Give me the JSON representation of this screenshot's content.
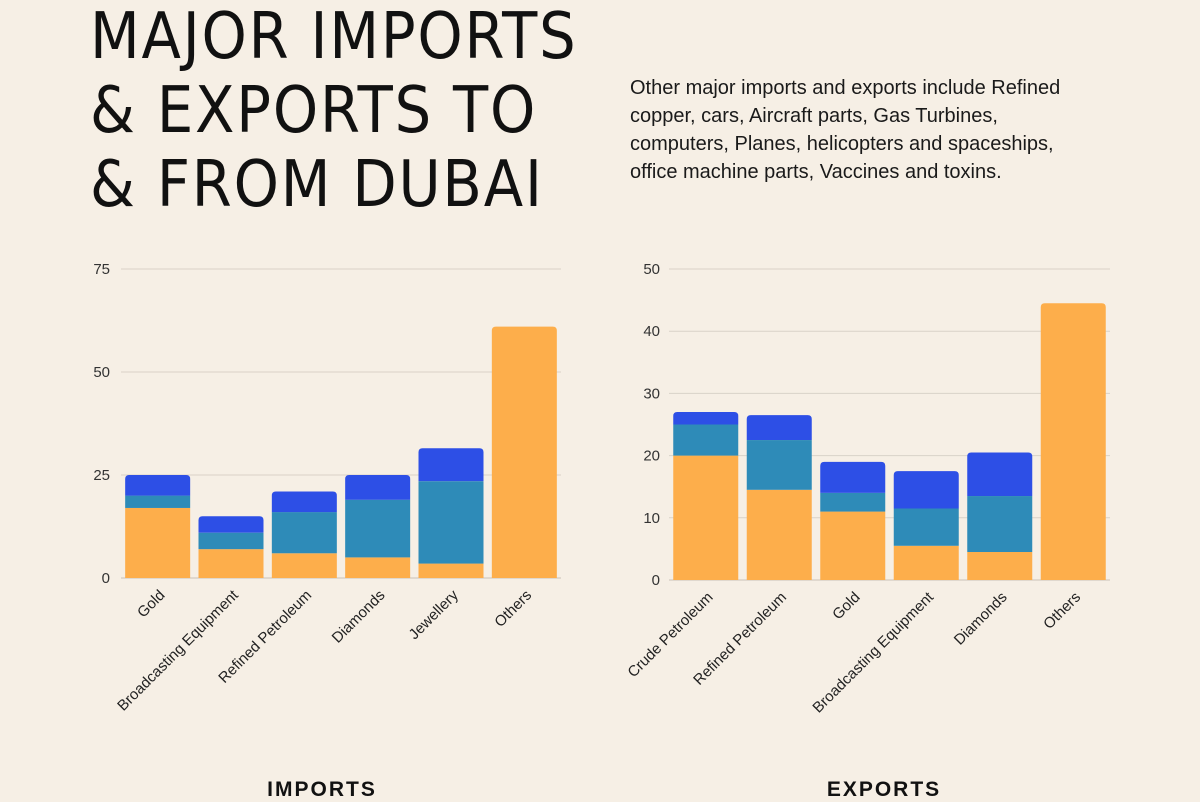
{
  "title": {
    "lines": [
      "Major imports",
      "& exports to",
      "& from Dubai"
    ]
  },
  "description": "Other major imports and exports include Refined copper, cars, Aircraft parts, Gas Turbines, computers, Planes, helicopters and spaceships, office machine parts, Vaccines and toxins.",
  "colors": {
    "background": "#f6efe5",
    "orange": "#fdae4b",
    "teal": "#2e8bb8",
    "blue": "#2d4fe6",
    "grid": "#d9d2c8",
    "text": "#111111"
  },
  "chart_data": [
    {
      "type": "bar",
      "stacked": true,
      "label": "IMPORTS",
      "categories": [
        "Gold",
        "Broadcasting Equipment",
        "Refined Petroleum",
        "Diamonds",
        "Jewellery",
        "Others"
      ],
      "series": [
        {
          "color": "#fdae4b",
          "values": [
            17,
            7,
            6,
            5,
            3.5,
            61
          ]
        },
        {
          "color": "#2e8bb8",
          "values": [
            3,
            4,
            10,
            14,
            20,
            0
          ]
        },
        {
          "color": "#2d4fe6",
          "values": [
            5,
            4,
            5,
            6,
            8,
            0
          ]
        }
      ],
      "ylim": [
        0,
        75
      ],
      "yticks": [
        0,
        25,
        50,
        75
      ],
      "grid": true
    },
    {
      "type": "bar",
      "stacked": true,
      "label": "EXPORTS",
      "categories": [
        "Crude Petroleum",
        "Refined Petroleum",
        "Gold",
        "Broadcasting Equipment",
        "Diamonds",
        "Others"
      ],
      "series": [
        {
          "color": "#fdae4b",
          "values": [
            20,
            14.5,
            11,
            5.5,
            4.5,
            44.5
          ]
        },
        {
          "color": "#2e8bb8",
          "values": [
            5,
            8,
            3,
            6,
            9,
            0
          ]
        },
        {
          "color": "#2d4fe6",
          "values": [
            2,
            4,
            5,
            6,
            7,
            0
          ]
        }
      ],
      "ylim": [
        0,
        50
      ],
      "yticks": [
        0,
        10,
        20,
        30,
        40,
        50
      ],
      "grid": true
    }
  ]
}
